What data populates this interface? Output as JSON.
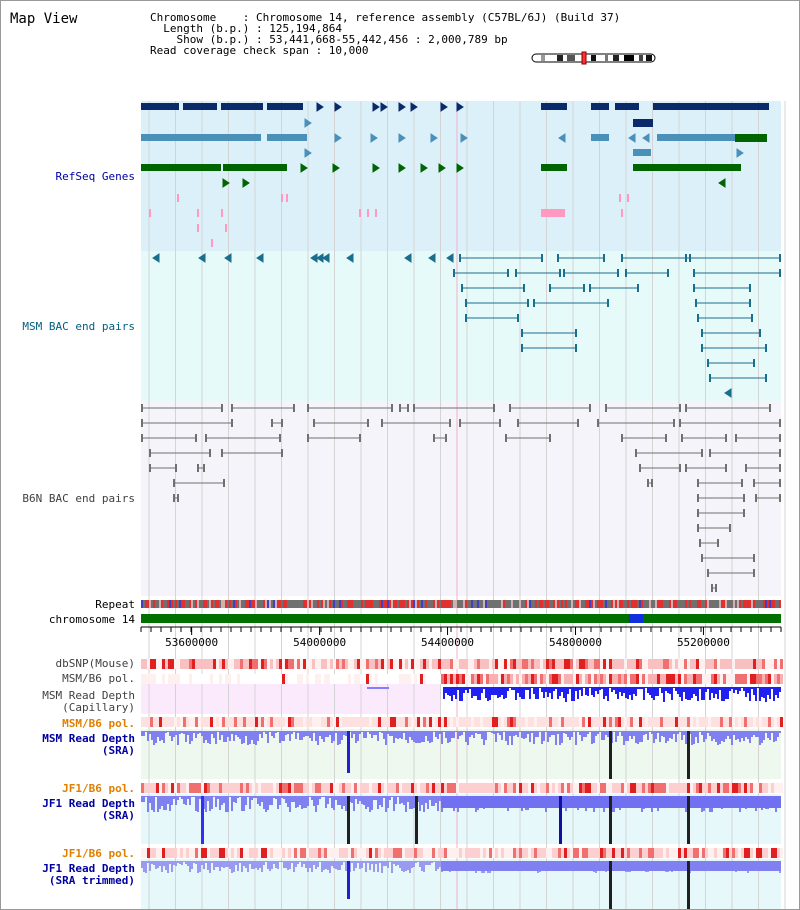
{
  "title": "Map View",
  "header": {
    "chromosome_line": "Chromosome    : Chromosome 14, reference assembly (C57BL/6J) (Build 37)",
    "length_line": "  Length (b.p.) : 125,194,864",
    "show_line": "    Show (b.p.) : 53,441,668-55,442,456 : 2,000,789 bp",
    "coverage_line": "Read coverage check span : 10,000"
  },
  "tracks": {
    "refseq": "RefSeq Genes",
    "msm_bac": "MSM BAC end pairs",
    "b6n_bac": "B6N BAC end pairs",
    "repeat": "Repeat",
    "chromosome": "chromosome 14",
    "dbsnp": "dbSNP(Mouse)",
    "msm_pol": "MSM/B6 pol.",
    "msm_depth_cap_1": "MSM Read Depth",
    "msm_depth_cap_2": "(Capillary)",
    "msm_pol_sra": "MSM/B6 pol.",
    "msm_depth_sra_1": "MSM Read Depth",
    "msm_depth_sra_2": "(SRA)",
    "jf1_pol_1": "JF1/B6 pol.",
    "jf1_depth_1": "JF1 Read Depth",
    "jf1_depth_1b": "(SRA)",
    "jf1_pol_2": "JF1/B6 pol.",
    "jf1_depth_2": "JF1 Read Depth",
    "jf1_depth_2b": "(SRA trimmed)"
  },
  "axis": {
    "start": 53441668,
    "end": 55442456,
    "ticks": [
      "53600000",
      "54000000",
      "54400000",
      "54800000",
      "55200000"
    ],
    "tick_values": [
      53600000,
      54000000,
      54400000,
      54800000,
      55200000
    ]
  },
  "colors": {
    "label_blue": "#0000a0",
    "label_teal": "#006080",
    "label_gray": "#404040",
    "label_orange": "#e08000",
    "refseq_bg": "#dcf0fa",
    "msm_bg": "#e6fafa",
    "b6n_bg": "#f4f4fa",
    "gene_navy": "#0a2a6a",
    "gene_steel": "#4a90b8",
    "gene_green": "#006400",
    "gene_pink": "#ff99c0",
    "bac_teal": "#1a6e8e",
    "bac_gray": "#707070",
    "chrom_green": "#007000",
    "depth_blue": "#3030f0",
    "depth_light": "#8080f0"
  }
}
